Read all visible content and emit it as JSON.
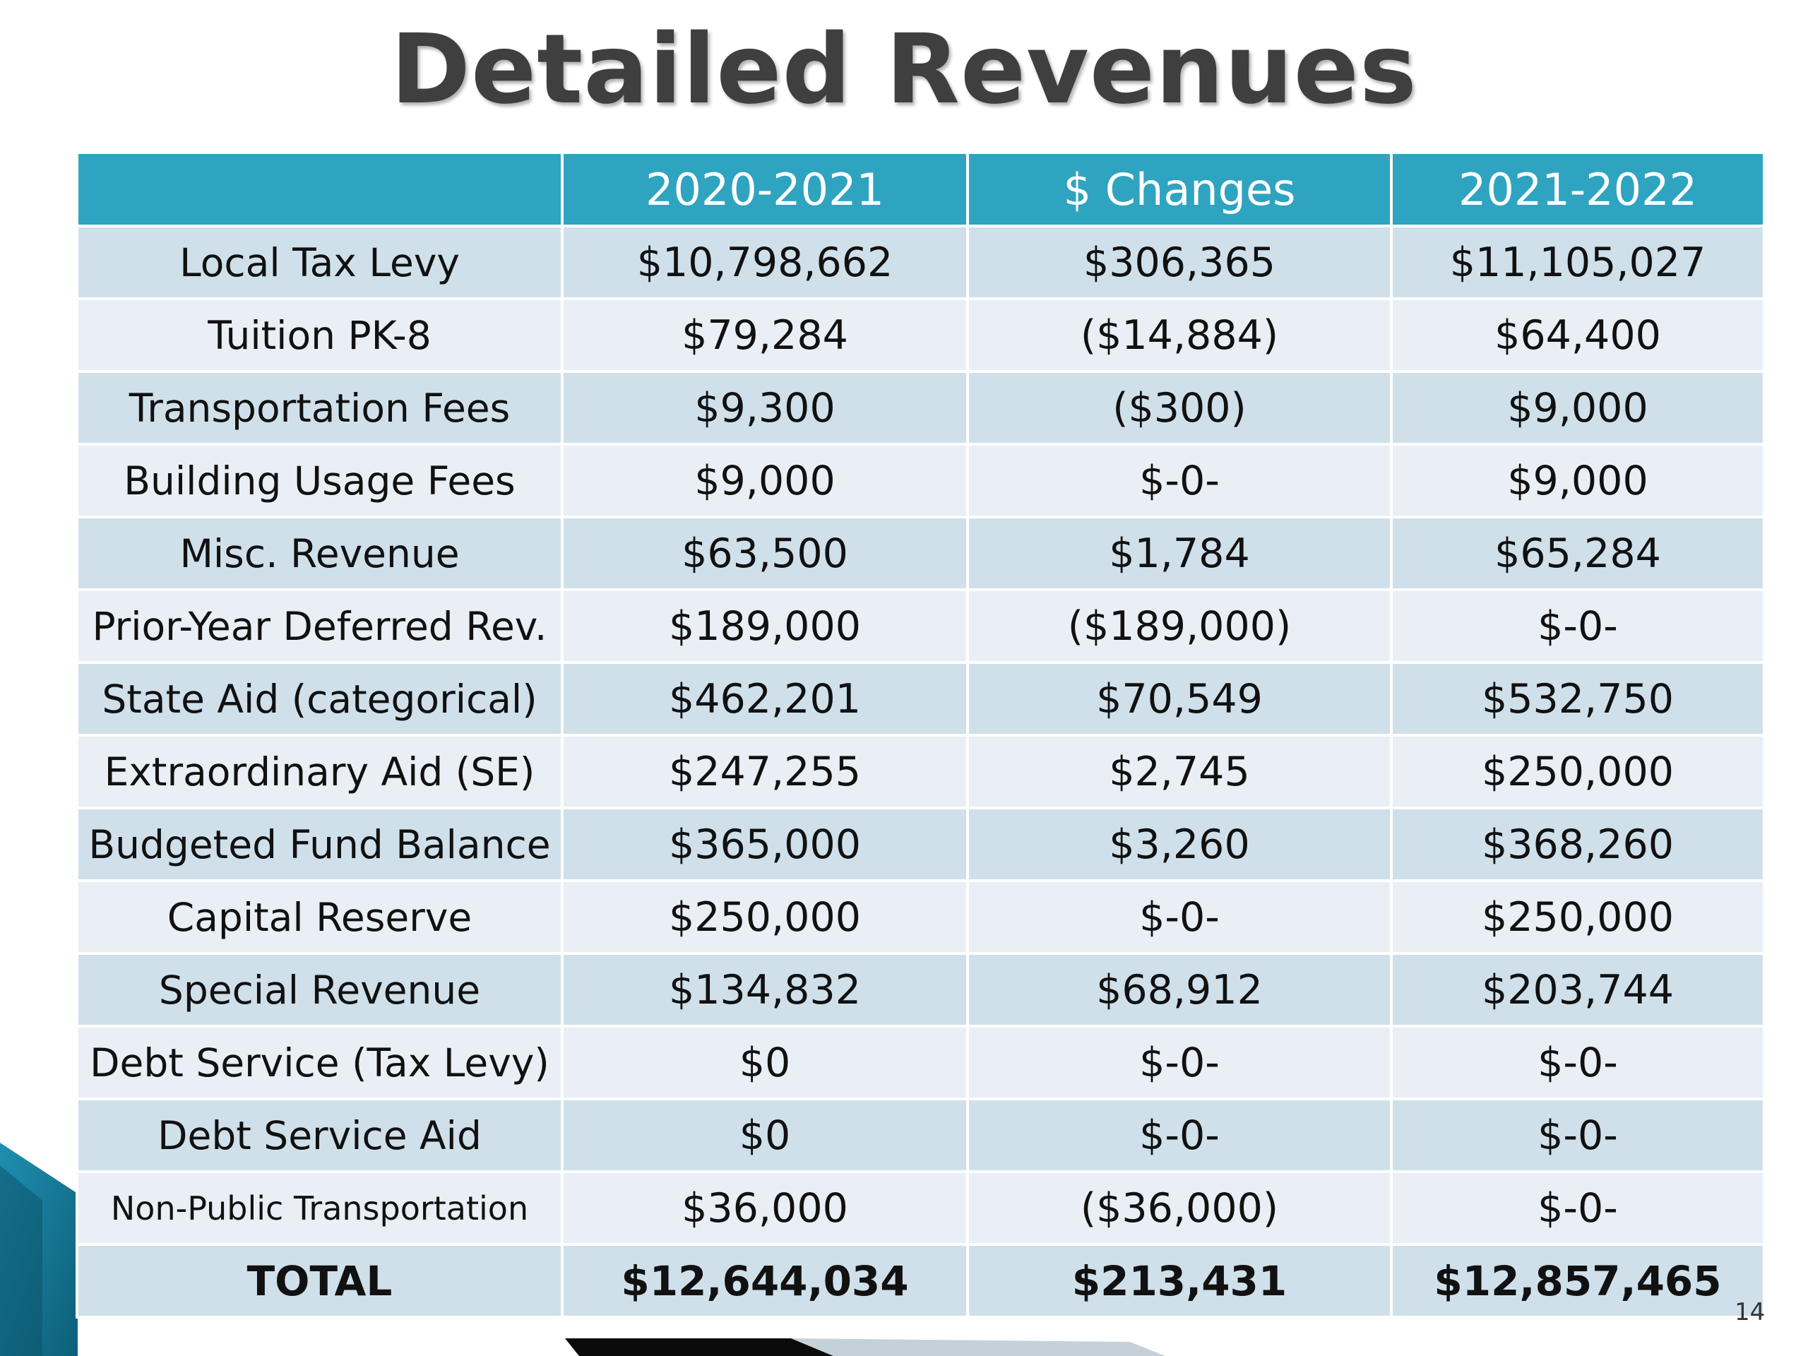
{
  "slide": {
    "title": "Detailed Revenues",
    "page_number": "14",
    "accent_color": "#2fa4c1"
  },
  "table": {
    "headers": [
      "",
      "2020-2021",
      "$ Changes",
      "2021-2022"
    ],
    "rows": [
      {
        "label": "Local Tax Levy",
        "y2020": "$10,798,662",
        "change": "$306,365",
        "y2021": "$11,105,027"
      },
      {
        "label": "Tuition PK-8",
        "y2020": "$79,284",
        "change": "($14,884)",
        "y2021": "$64,400"
      },
      {
        "label": "Transportation Fees",
        "y2020": "$9,300",
        "change": "($300)",
        "y2021": "$9,000"
      },
      {
        "label": "Building Usage Fees",
        "y2020": "$9,000",
        "change": "$-0-",
        "y2021": "$9,000"
      },
      {
        "label": "Misc. Revenue",
        "y2020": "$63,500",
        "change": "$1,784",
        "y2021": "$65,284"
      },
      {
        "label": "Prior-Year Deferred Rev.",
        "y2020": "$189,000",
        "change": "($189,000)",
        "y2021": "$-0-"
      },
      {
        "label": "State Aid (categorical)",
        "y2020": "$462,201",
        "change": "$70,549",
        "y2021": "$532,750"
      },
      {
        "label": "Extraordinary Aid (SE)",
        "y2020": "$247,255",
        "change": "$2,745",
        "y2021": "$250,000"
      },
      {
        "label": "Budgeted Fund Balance",
        "y2020": "$365,000",
        "change": "$3,260",
        "y2021": "$368,260"
      },
      {
        "label": "Capital Reserve",
        "y2020": "$250,000",
        "change": "$-0-",
        "y2021": "$250,000"
      },
      {
        "label": "Special Revenue",
        "y2020": "$134,832",
        "change": "$68,912",
        "y2021": "$203,744"
      },
      {
        "label": "Debt Service (Tax Levy)",
        "y2020": "$0",
        "change": "$-0-",
        "y2021": "$-0-"
      },
      {
        "label": "Debt Service Aid",
        "y2020": "$0",
        "change": "$-0-",
        "y2021": "$-0-"
      },
      {
        "label": "Non-Public Transportation",
        "y2020": "$36,000",
        "change": "($36,000)",
        "y2021": "$-0-"
      }
    ],
    "total": {
      "label": "TOTAL",
      "y2020": "$12,644,034",
      "change": "$213,431",
      "y2021": "$12,857,465"
    }
  }
}
